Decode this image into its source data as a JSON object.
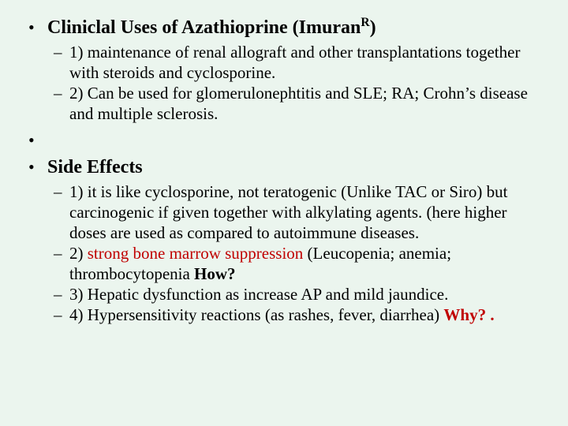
{
  "background_color": "#ebf5ee",
  "text_color": "#000000",
  "accent_color": "#c00000",
  "font_family": "Times New Roman",
  "section1": {
    "heading_pre": "Cliniclal Uses of Azathioprine (Imuran",
    "heading_sup": "R",
    "heading_post": ")",
    "heading_fontsize": 24,
    "items": [
      "1) maintenance of renal allograft and other transplantations together with steroids and cyclosporine.",
      "2) Can be used for glomerulonephtitis and SLE; RA;   Crohn’s disease and multiple sclerosis."
    ],
    "item_fontsize": 21
  },
  "section2": {
    "heading": "Side Effects",
    "heading_fontsize": 24,
    "items": {
      "i1": "1) it is like cyclosporine, not teratogenic (Unlike TAC or Siro) but carcinogenic if given together with alkylating agents. (here higher doses are used as compared to autoimmune diseases.",
      "i2_pre": "2) ",
      "i2_red": "strong bone marrow suppression",
      "i2_post": " (Leucopenia; anemia; thrombocytopenia   ",
      "i2_how": "How?",
      "i3": "3) Hepatic dysfunction as increase AP and mild jaundice.",
      "i4_pre": "4) Hypersensitivity reactions (as rashes, fever, diarrhea) ",
      "i4_why": "Why? ."
    },
    "item_fontsize": 21
  }
}
